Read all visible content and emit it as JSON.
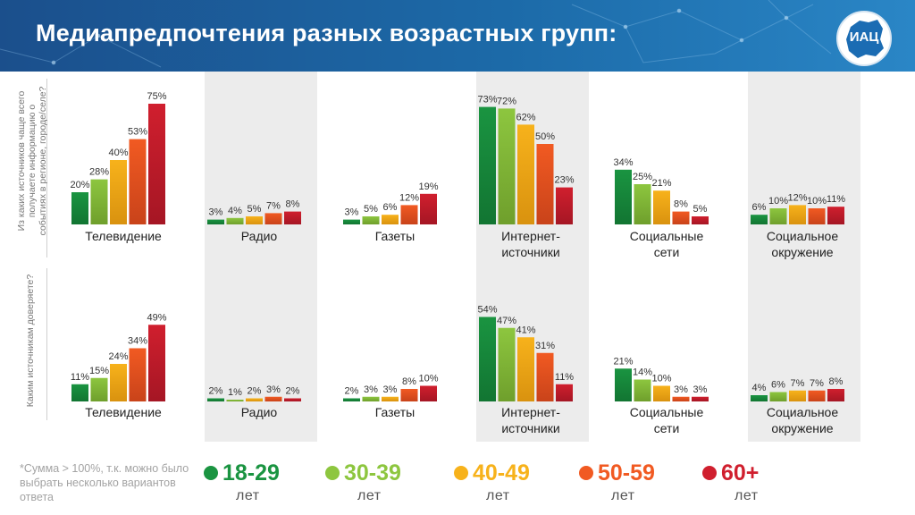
{
  "header": {
    "title": "Медиапредпочтения разных возрастных групп:",
    "logo_text": "ИАЦ"
  },
  "side_labels": {
    "top": [
      "Из каких источников чаще всего",
      "получаете информацию о",
      "событиях в регионе, городе/селе?"
    ],
    "bottom": "Каким источникам доверяете?"
  },
  "footnote": "*Сумма > 100%, т.к. можно было выбрать несколько вариантов ответа",
  "legend": [
    {
      "label": "18-29",
      "sub": "лет",
      "color": "#1a9441"
    },
    {
      "label": "30-39",
      "sub": "лет",
      "color": "#8dc63f"
    },
    {
      "label": "40-49",
      "sub": "лет",
      "color": "#f7b21b"
    },
    {
      "label": "50-59",
      "sub": "лет",
      "color": "#f15a22"
    },
    {
      "label": "60+",
      "sub": "лет",
      "color": "#d01f2e"
    }
  ],
  "colors": {
    "series": [
      "#1a9441",
      "#8dc63f",
      "#f7b21b",
      "#f15a22",
      "#d01f2e"
    ],
    "panel_bg": "#ececec"
  },
  "chart_data": [
    {
      "type": "bar",
      "question": "Из каких источников чаще всего получаете информацию о событиях в регионе, городе/селе?",
      "categories": [
        "Телевидение",
        "Радио",
        "Газеты",
        "Интернет-источники",
        "Социальные сети",
        "Социальное окружение"
      ],
      "category_lines": [
        [
          "Телевидение"
        ],
        [
          "Радио"
        ],
        [
          "Газеты"
        ],
        [
          "Интернет-",
          "источники"
        ],
        [
          "Социальные",
          "сети"
        ],
        [
          "Социальное",
          "окружение"
        ]
      ],
      "series": [
        {
          "name": "18-29 лет",
          "values": [
            20,
            3,
            3,
            73,
            34,
            6
          ]
        },
        {
          "name": "30-39 лет",
          "values": [
            28,
            4,
            5,
            72,
            25,
            10
          ]
        },
        {
          "name": "40-49 лет",
          "values": [
            40,
            5,
            6,
            62,
            21,
            12
          ]
        },
        {
          "name": "50-59 лет",
          "values": [
            53,
            7,
            12,
            50,
            8,
            10
          ]
        },
        {
          "name": "60+ лет",
          "values": [
            75,
            8,
            19,
            23,
            5,
            11
          ]
        }
      ],
      "unit": "%",
      "ylim": [
        0,
        80
      ]
    },
    {
      "type": "bar",
      "question": "Каким источникам доверяете?",
      "categories": [
        "Телевидение",
        "Радио",
        "Газеты",
        "Интернет-источники",
        "Социальные сети",
        "Социальное окружение"
      ],
      "category_lines": [
        [
          "Телевидение"
        ],
        [
          "Радио"
        ],
        [
          "Газеты"
        ],
        [
          "Интернет-",
          "источники"
        ],
        [
          "Социальные",
          "сети"
        ],
        [
          "Социальное",
          "окружение"
        ]
      ],
      "series": [
        {
          "name": "18-29 лет",
          "values": [
            11,
            2,
            2,
            54,
            21,
            4
          ]
        },
        {
          "name": "30-39 лет",
          "values": [
            15,
            1,
            3,
            47,
            14,
            6
          ]
        },
        {
          "name": "40-49 лет",
          "values": [
            24,
            2,
            3,
            41,
            10,
            7
          ]
        },
        {
          "name": "50-59 лет",
          "values": [
            34,
            3,
            8,
            31,
            3,
            7
          ]
        },
        {
          "name": "60+ лет",
          "values": [
            49,
            2,
            10,
            11,
            3,
            8
          ]
        }
      ],
      "unit": "%",
      "ylim": [
        0,
        80
      ]
    }
  ]
}
